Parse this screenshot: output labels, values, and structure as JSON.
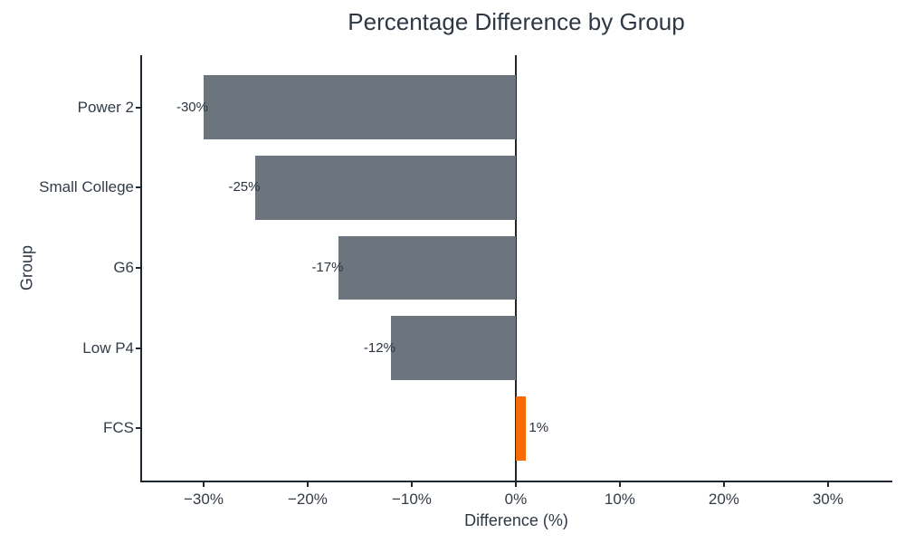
{
  "chart_data": {
    "type": "bar",
    "orientation": "horizontal",
    "title": "Percentage Difference by Group",
    "xlabel": "Difference (%)",
    "ylabel": "Group",
    "categories": [
      "Power 2",
      "Small College",
      "G6",
      "Low P4",
      "FCS"
    ],
    "values": [
      -30,
      -25,
      -17,
      -12,
      1
    ],
    "value_labels": [
      "-30%",
      "-25%",
      "-17%",
      "-12%",
      "1%"
    ],
    "x_ticks": [
      -30,
      -20,
      -10,
      0,
      10,
      20,
      30
    ],
    "x_tick_labels": [
      "−30%",
      "−20%",
      "−10%",
      "0%",
      "10%",
      "20%",
      "30%"
    ],
    "xlim": [
      -36,
      36.1
    ],
    "grid": false,
    "legend": null,
    "colors": {
      "bar_default": "#6c747e",
      "bar_highlight": "#fa6a02",
      "highlighted_category": "FCS",
      "axis_line": "#1e2630",
      "zero_line": "#1e2630",
      "title_text": "#2e3845",
      "tick_text": "#333b47",
      "value_label_text": "#2b3440",
      "background": "#ffffff"
    }
  }
}
